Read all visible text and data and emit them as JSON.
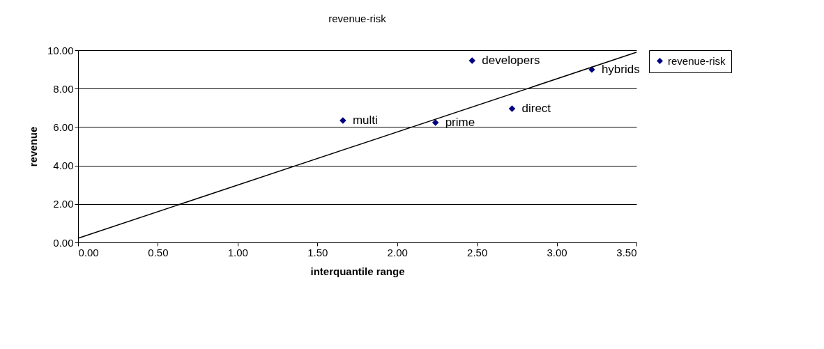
{
  "chart_data": {
    "type": "scatter",
    "title": "revenue-risk",
    "xlabel": "interquantile range",
    "ylabel": "revenue",
    "x": [
      1.66,
      2.24,
      2.47,
      2.72,
      3.22
    ],
    "series": [
      {
        "name": "revenue-risk",
        "color": "#000080",
        "values": [
          6.34,
          6.23,
          9.46,
          6.96,
          8.99
        ]
      },
      {
        "type": "line",
        "color": "#000000",
        "marker": "none",
        "x": [
          0,
          3.5
        ],
        "values": [
          0.22,
          9.89
        ]
      }
    ],
    "annotations": [
      {
        "text": "multi",
        "x": 1.66,
        "y": 6.34
      },
      {
        "text": "prime",
        "x": 2.24,
        "y": 6.23
      },
      {
        "text": "developers",
        "x": 2.47,
        "y": 9.46
      },
      {
        "text": "direct",
        "x": 2.72,
        "y": 6.96
      },
      {
        "text": "hybrids",
        "x": 3.22,
        "y": 8.99
      }
    ],
    "xlim": [
      0,
      3.5
    ],
    "ylim": [
      0,
      10
    ],
    "xticks": [
      {
        "value": 0,
        "label": "0.00"
      },
      {
        "value": 0.5,
        "label": "0.50"
      },
      {
        "value": 1,
        "label": "1.00"
      },
      {
        "value": 1.5,
        "label": "1.50"
      },
      {
        "value": 2,
        "label": "2.00"
      },
      {
        "value": 2.5,
        "label": "2.50"
      },
      {
        "value": 3,
        "label": "3.00"
      },
      {
        "value": 3.5,
        "label": "3.50"
      }
    ],
    "yticks": [
      {
        "value": 0,
        "label": "0.00"
      },
      {
        "value": 2,
        "label": "2.00"
      },
      {
        "value": 4,
        "label": "4.00"
      },
      {
        "value": 6,
        "label": "6.00"
      },
      {
        "value": 8,
        "label": "8.00"
      },
      {
        "value": 10,
        "label": "10.00"
      }
    ],
    "grid": "y",
    "legend": "right",
    "marker": "diamond"
  }
}
